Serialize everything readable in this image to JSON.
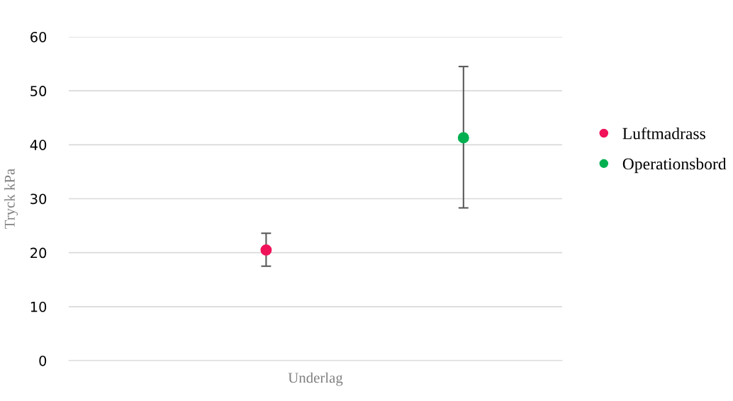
{
  "chart_data": {
    "type": "scatter",
    "xlabel": "Underlag",
    "ylabel": "Tryck kPa",
    "categories": [
      null,
      null
    ],
    "ylim": [
      0,
      60
    ],
    "yticks": [
      0,
      10,
      20,
      30,
      40,
      50,
      60
    ],
    "tick_labels": "y",
    "grid": "y",
    "legend": "right",
    "marker": "circle",
    "series": [
      {
        "name": "Luftmadrass",
        "color": "#f0135a",
        "values": [
          20.5,
          null
        ],
        "errors": [
          [
            17.5,
            23.6
          ],
          null
        ]
      },
      {
        "name": "Operationsbord",
        "color": "#00b050",
        "values": [
          null,
          41.3
        ],
        "errors": [
          null,
          [
            28.3,
            54.5
          ]
        ]
      }
    ]
  }
}
